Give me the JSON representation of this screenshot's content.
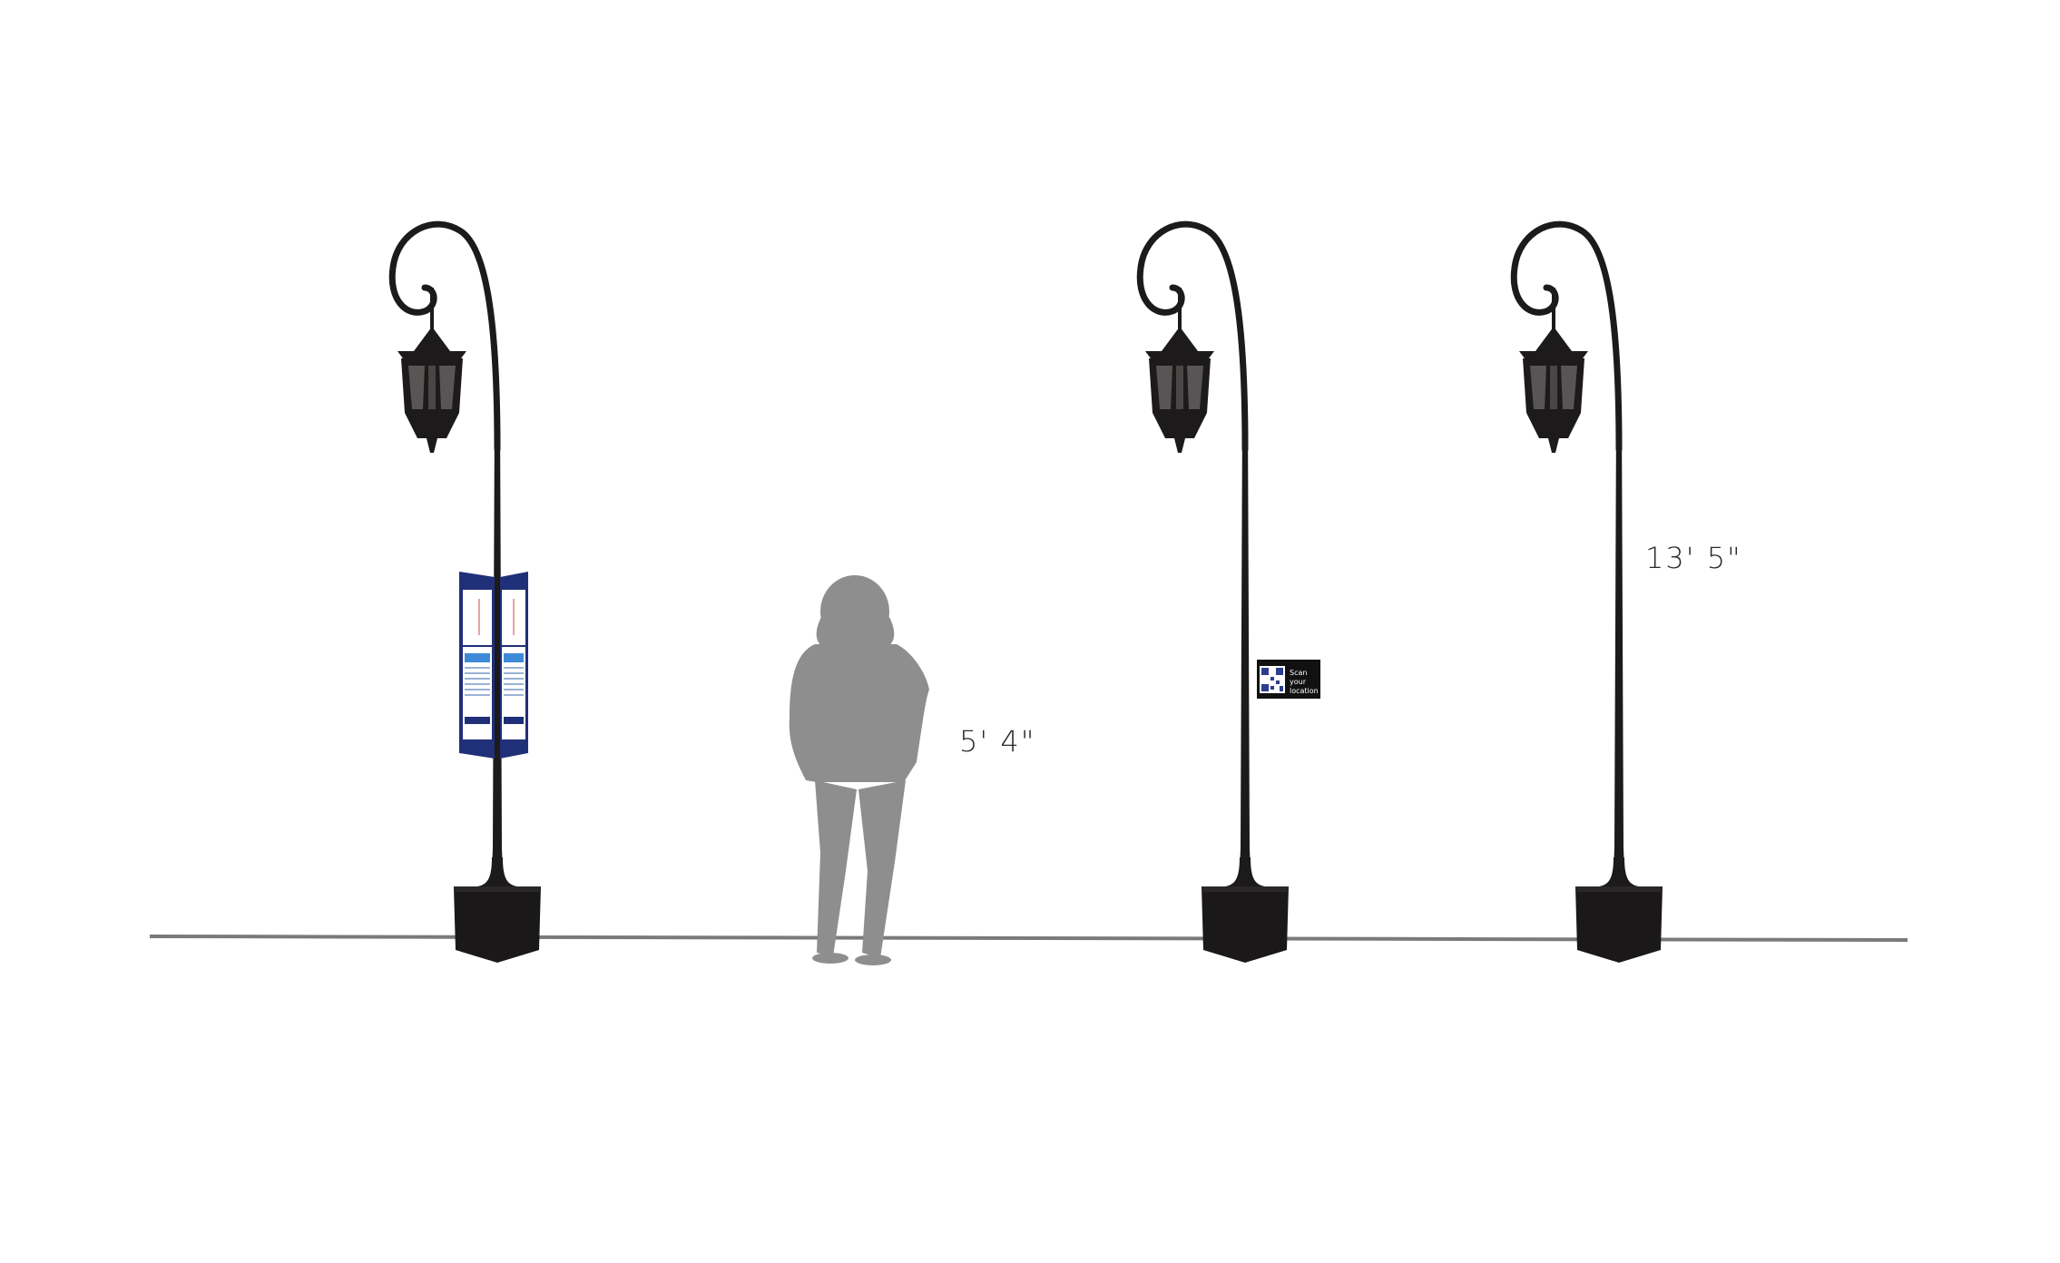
{
  "annotations": {
    "person_height": "5' 4\"",
    "pole_height": "13' 5\""
  },
  "qr_sign": {
    "line1": "Scan",
    "line2": "your",
    "line3": "location"
  },
  "colors": {
    "pole": "#1c1a1a",
    "lantern_glass": "#5a5555",
    "silhouette": "#8e8e8e",
    "ground": "#7a7a7a",
    "kiosk_header": "#1f2f78",
    "kiosk_accent": "#3d8bd8"
  },
  "icons": {
    "lamp_post": "lamp-post-icon",
    "person": "person-silhouette-icon",
    "qr": "qr-code-icon"
  }
}
